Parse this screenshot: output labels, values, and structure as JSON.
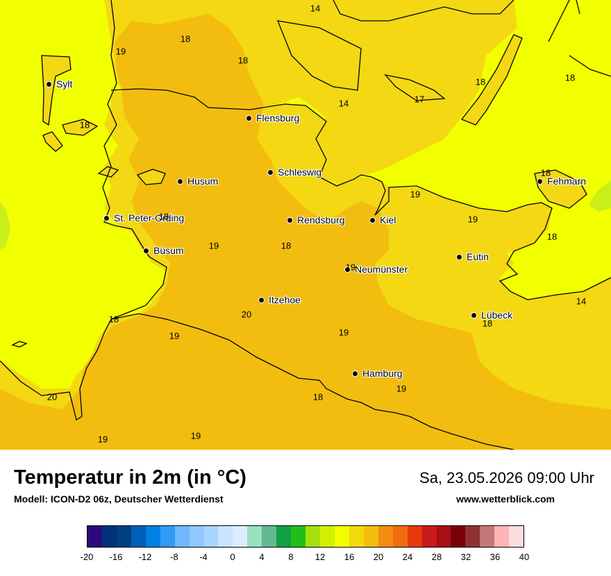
{
  "map": {
    "colors": {
      "sea": "#f2ff00",
      "land_light": "#f3d813",
      "land_warm": "#f3bd0f",
      "green_patch": "#c9ef1a",
      "coastline": "#000000"
    },
    "cities": [
      {
        "name": "Sylt"
      },
      {
        "name": "Flensburg"
      },
      {
        "name": "Schleswig"
      },
      {
        "name": "Husum"
      },
      {
        "name": "St. Peter-Ording"
      },
      {
        "name": "Rendsburg"
      },
      {
        "name": "Kiel"
      },
      {
        "name": "Büsum"
      },
      {
        "name": "Neumünster"
      },
      {
        "name": "Eutin"
      },
      {
        "name": "Fehmarn"
      },
      {
        "name": "Itzehoe"
      },
      {
        "name": "Lübeck"
      },
      {
        "name": "Hamburg"
      }
    ],
    "temperature_labels": [
      "14",
      "18",
      "19",
      "18",
      "18",
      "14",
      "18",
      "17",
      "18",
      "18",
      "18",
      "19",
      "19",
      "18",
      "19",
      "18",
      "19",
      "14",
      "18",
      "18",
      "20",
      "19",
      "19",
      "19",
      "18",
      "20",
      "19",
      "19",
      "19",
      "19"
    ]
  },
  "footer": {
    "title": "Temperatur in 2m (in °C)",
    "model": "Modell: ICON-D2 06z, Deutscher Wetterdienst",
    "datetime": "Sa, 23.05.2026 09:00 Uhr",
    "website": "www.wetterblick.com"
  },
  "colorbar": {
    "colors": [
      "#2c0a7c",
      "#00317a",
      "#004080",
      "#005fb8",
      "#0080e0",
      "#2e9cf5",
      "#70b8fb",
      "#8ec8fc",
      "#a8d4fd",
      "#c9e3ff",
      "#dcedff",
      "#96e1bf",
      "#62b890",
      "#0fa045",
      "#20bf18",
      "#a7df0d",
      "#d3ef00",
      "#f2ff00",
      "#f2d90c",
      "#f3bd0f",
      "#f38c10",
      "#f26c0e",
      "#e8390e",
      "#c81a1a",
      "#a80e15",
      "#7a0008",
      "#8e3233",
      "#c67777",
      "#fcb4b4",
      "#fcdcdc"
    ],
    "ticks": [
      "-20",
      "-16",
      "-12",
      "-8",
      "-4",
      "0",
      "4",
      "8",
      "12",
      "16",
      "20",
      "24",
      "28",
      "32",
      "36",
      "40"
    ]
  }
}
